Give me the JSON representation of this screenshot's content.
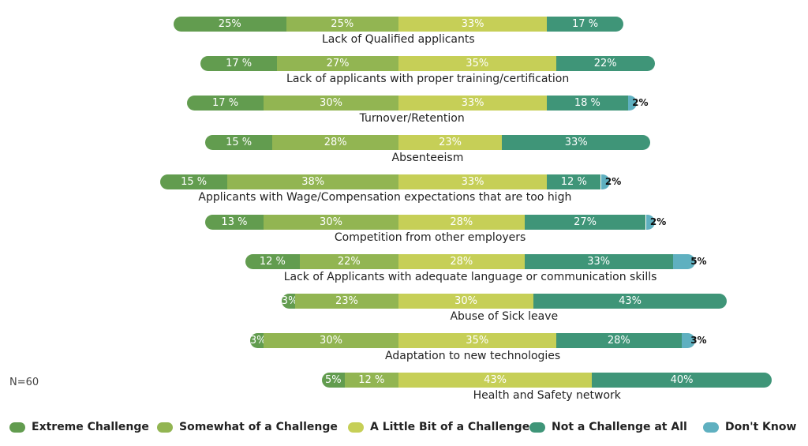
{
  "chart_data": {
    "type": "bar",
    "orientation": "horizontal-diverging-stacked",
    "title": "",
    "note": "N=60",
    "legend_position": "bottom",
    "series": [
      {
        "name": "Extreme Challenge",
        "color": "#629c4f"
      },
      {
        "name": "Somewhat of a Challenge",
        "color": "#92b552"
      },
      {
        "name": "A Little Bit of a Challenge",
        "color": "#c6cf57"
      },
      {
        "name": "Not a Challenge at All",
        "color": "#3f9578"
      },
      {
        "name": "Don't Know",
        "color": "#5fb0c0"
      }
    ],
    "categories": [
      {
        "label": "Lack of Qualified applicants",
        "values": [
          25,
          25,
          33,
          17,
          0
        ],
        "labels": [
          "25%",
          "25%",
          "33%",
          "17 %",
          ""
        ]
      },
      {
        "label": "Lack of applicants with proper training/certification",
        "values": [
          17,
          27,
          35,
          22,
          0
        ],
        "labels": [
          "17 %",
          "27%",
          "35%",
          "22%",
          ""
        ]
      },
      {
        "label": "Turnover/Retention",
        "values": [
          17,
          30,
          33,
          18,
          2
        ],
        "labels": [
          "17 %",
          "30%",
          "33%",
          "18 %",
          "2%"
        ]
      },
      {
        "label": "Absenteeism",
        "values": [
          15,
          28,
          23,
          33,
          0
        ],
        "labels": [
          "15 %",
          "28%",
          "23%",
          "33%",
          ""
        ]
      },
      {
        "label": "Applicants with Wage/Compensation expectations that are too high",
        "values": [
          15,
          38,
          33,
          12,
          2
        ],
        "labels": [
          "15 %",
          "38%",
          "33%",
          "12 %",
          "2%"
        ]
      },
      {
        "label": "Competition from other employers",
        "values": [
          13,
          30,
          28,
          27,
          2
        ],
        "labels": [
          "13 %",
          "30%",
          "28%",
          "27%",
          "2%"
        ]
      },
      {
        "label": "Lack of Applicants with adequate language or communication skills",
        "values": [
          12,
          22,
          28,
          33,
          5
        ],
        "labels": [
          "12 %",
          "22%",
          "28%",
          "33%",
          "5%"
        ]
      },
      {
        "label": "Abuse of Sick leave",
        "values": [
          3,
          23,
          30,
          43,
          0
        ],
        "labels": [
          "3%",
          "23%",
          "30%",
          "43%",
          ""
        ]
      },
      {
        "label": "Adaptation to new technologies",
        "values": [
          3,
          30,
          35,
          28,
          3
        ],
        "labels": [
          "3%",
          "30%",
          "35%",
          "28%",
          "3%"
        ]
      },
      {
        "label": "Health and Safety network",
        "values": [
          5,
          12,
          43,
          40,
          0
        ],
        "labels": [
          "5%",
          "12 %",
          "43%",
          "40%",
          ""
        ]
      }
    ]
  }
}
